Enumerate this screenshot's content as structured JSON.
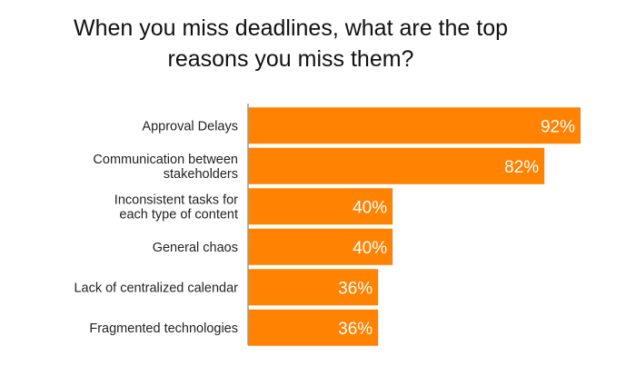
{
  "chart_data": {
    "type": "bar",
    "orientation": "horizontal",
    "title_lines": [
      "When you miss deadlines, what are the top",
      "reasons you miss them?"
    ],
    "categories": [
      [
        "Approval Delays"
      ],
      [
        "Communication between",
        "stakeholders"
      ],
      [
        "Inconsistent tasks for",
        "each type of content"
      ],
      [
        "General chaos"
      ],
      [
        "Lack of centralized calendar"
      ],
      [
        "Fragmented technologies"
      ]
    ],
    "values": [
      92,
      82,
      40,
      40,
      36,
      36
    ],
    "value_labels": [
      "92%",
      "82%",
      "40%",
      "40%",
      "36%",
      "36%"
    ],
    "xlim": [
      0,
      100
    ],
    "grid": false,
    "legend": "none",
    "bar_color": "#ff8200",
    "axis_color": "#9a9a9a"
  }
}
